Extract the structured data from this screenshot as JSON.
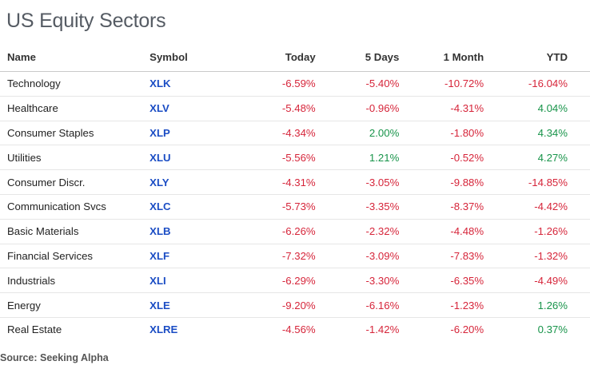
{
  "title": "US Equity Sectors",
  "columns": {
    "name": "Name",
    "symbol": "Symbol",
    "today": "Today",
    "five_days": "5 Days",
    "one_month": "1 Month",
    "ytd": "YTD"
  },
  "rows": [
    {
      "name": "Technology",
      "symbol": "XLK",
      "today": "-6.59%",
      "five_days": "-5.40%",
      "one_month": "-10.72%",
      "ytd": "-16.04%"
    },
    {
      "name": "Healthcare",
      "symbol": "XLV",
      "today": "-5.48%",
      "five_days": "-0.96%",
      "one_month": "-4.31%",
      "ytd": "4.04%"
    },
    {
      "name": "Consumer Staples",
      "symbol": "XLP",
      "today": "-4.34%",
      "five_days": "2.00%",
      "one_month": "-1.80%",
      "ytd": "4.34%"
    },
    {
      "name": "Utilities",
      "symbol": "XLU",
      "today": "-5.56%",
      "five_days": "1.21%",
      "one_month": "-0.52%",
      "ytd": "4.27%"
    },
    {
      "name": "Consumer Discr.",
      "symbol": "XLY",
      "today": "-4.31%",
      "five_days": "-3.05%",
      "one_month": "-9.88%",
      "ytd": "-14.85%"
    },
    {
      "name": "Communication Svcs",
      "symbol": "XLC",
      "today": "-5.73%",
      "five_days": "-3.35%",
      "one_month": "-8.37%",
      "ytd": "-4.42%"
    },
    {
      "name": "Basic Materials",
      "symbol": "XLB",
      "today": "-6.26%",
      "five_days": "-2.32%",
      "one_month": "-4.48%",
      "ytd": "-1.26%"
    },
    {
      "name": "Financial Services",
      "symbol": "XLF",
      "today": "-7.32%",
      "five_days": "-3.09%",
      "one_month": "-7.83%",
      "ytd": "-1.32%"
    },
    {
      "name": "Industrials",
      "symbol": "XLI",
      "today": "-6.29%",
      "five_days": "-3.30%",
      "one_month": "-6.35%",
      "ytd": "-4.49%"
    },
    {
      "name": "Energy",
      "symbol": "XLE",
      "today": "-9.20%",
      "five_days": "-6.16%",
      "one_month": "-1.23%",
      "ytd": "1.26%"
    },
    {
      "name": "Real Estate",
      "symbol": "XLRE",
      "today": "-4.56%",
      "five_days": "-1.42%",
      "one_month": "-6.20%",
      "ytd": "0.37%"
    }
  ],
  "source": "Source: Seeking Alpha",
  "colors": {
    "negative": "#d6253a",
    "positive": "#18944a",
    "symbol": "#1b4dc4"
  }
}
